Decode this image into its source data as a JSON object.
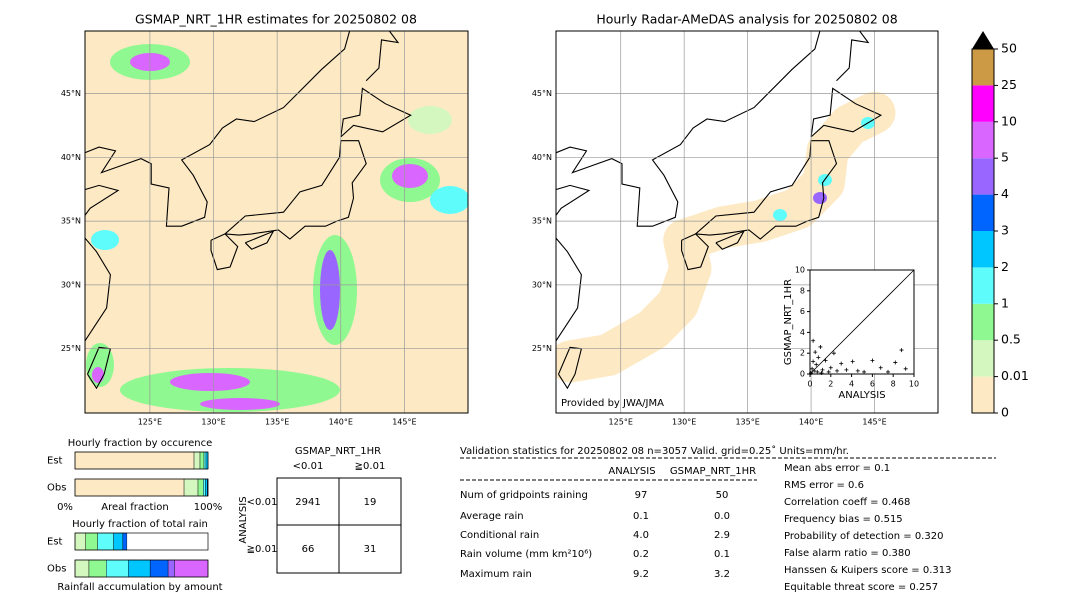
{
  "left_map": {
    "title": "GSMAP_NRT_1HR estimates for 20250802 08",
    "xlim": [
      119.9,
      150.0
    ],
    "ylim": [
      19.96,
      49.9
    ],
    "xticks": [
      {
        "value": 125,
        "label": "125°E"
      },
      {
        "value": 130,
        "label": "130°E"
      },
      {
        "value": 135,
        "label": "135°E"
      },
      {
        "value": 140,
        "label": "140°E"
      },
      {
        "value": 145,
        "label": "145°E"
      }
    ],
    "yticks": [
      {
        "value": 25,
        "label": "25°N"
      },
      {
        "value": 30,
        "label": "30°N"
      },
      {
        "value": 35,
        "label": "35°N"
      },
      {
        "value": 40,
        "label": "40°N"
      },
      {
        "value": 45,
        "label": "45°N"
      }
    ]
  },
  "right_map": {
    "title": "Hourly Radar-AMeDAS analysis for 20250802 08",
    "credit": "Provided by JWA/JMA",
    "xlim": [
      119.9,
      150.0
    ],
    "ylim": [
      19.96,
      49.9
    ],
    "xticks": [
      {
        "value": 125,
        "label": "125°E"
      },
      {
        "value": 130,
        "label": "130°E"
      },
      {
        "value": 135,
        "label": "135°E"
      },
      {
        "value": 140,
        "label": "140°E"
      },
      {
        "value": 145,
        "label": "145°E"
      }
    ],
    "yticks": [
      {
        "value": 25,
        "label": "25°N"
      },
      {
        "value": 30,
        "label": "30°N"
      },
      {
        "value": 35,
        "label": "35°N"
      },
      {
        "value": 40,
        "label": "40°N"
      },
      {
        "value": 45,
        "label": "45°N"
      }
    ]
  },
  "colorbar": {
    "ticks": [
      0,
      0.01,
      0.5,
      1,
      2,
      3,
      4,
      5,
      10,
      25,
      50
    ],
    "colors": [
      "#fdeac4",
      "#d4f7bf",
      "#90f890",
      "#5ffcfc",
      "#00c6ff",
      "#0064ff",
      "#9966ff",
      "#d966ff",
      "#ff00ff",
      "#cc9944"
    ]
  },
  "scatter": {
    "type": "scatter",
    "xlabel": "ANALYSIS",
    "ylabel": "GSMAP_NRT_1HR",
    "xlim": [
      0,
      10
    ],
    "ylim": [
      0,
      10
    ],
    "xticks": [
      0,
      2,
      4,
      6,
      8,
      10
    ],
    "yticks": [
      0,
      2,
      4,
      6,
      8,
      10
    ],
    "x": [
      0.1,
      0.2,
      0.3,
      0.5,
      0.4,
      0.8,
      1.0,
      1.2,
      0.6,
      1.5,
      2.0,
      2.3,
      1.8,
      3.0,
      3.5,
      4.1,
      4.6,
      5.2,
      6.0,
      6.8,
      7.5,
      8.2,
      8.8,
      9.2,
      0.3,
      0.7,
      1.1,
      2.6
    ],
    "y": [
      0.1,
      0.5,
      1.2,
      2.1,
      0.3,
      1.6,
      2.6,
      0.4,
      0.9,
      1.3,
      0.6,
      2.0,
      0.2,
      1.0,
      0.4,
      1.2,
      0.3,
      0.2,
      1.3,
      0.6,
      0.2,
      1.1,
      2.3,
      0.5,
      3.2,
      0.2,
      0.1,
      0.3
    ]
  },
  "occurrence": {
    "title": "Hourly fraction by occurence",
    "rows": [
      "Est",
      "Obs"
    ],
    "axis_left": "0%",
    "axis_mid": "Areal fraction",
    "axis_right": "100%",
    "segments": [
      [
        0.895,
        0.045,
        0.03,
        0.015,
        0.015
      ],
      [
        0.82,
        0.105,
        0.04,
        0.015,
        0.015,
        0.005
      ]
    ]
  },
  "total": {
    "title": "Hourly fraction of total rain",
    "rows": [
      "Est",
      "Obs"
    ],
    "footer": "Rainfall accumulation by amount",
    "segments": [
      [
        0.0,
        0.08,
        0.09,
        0.12,
        0.07,
        0.03
      ],
      [
        0.0,
        0.105,
        0.13,
        0.165,
        0.165,
        0.135,
        0.05,
        0.25
      ]
    ]
  },
  "contingency": {
    "title": "GSMAP_NRT_1HR",
    "cols": [
      "<0.01",
      "≧0.01"
    ],
    "row_title": "ANALYSIS",
    "rows": [
      "<0.01",
      "≧0.01"
    ],
    "cells": [
      [
        "2941",
        "19"
      ],
      [
        "66",
        "31"
      ]
    ]
  },
  "validation": {
    "header": "Validation statistics for 20250802 08  n=3057 Valid. grid=0.25˚ Units=mm/hr.",
    "cols": [
      "ANALYSIS",
      "GSMAP_NRT_1HR"
    ],
    "rows": [
      [
        "Num of gridpoints raining",
        "97",
        "50"
      ],
      [
        "Average rain",
        "0.1",
        "0.0"
      ],
      [
        "Conditional rain",
        "4.0",
        "2.9"
      ],
      [
        "Rain volume (mm km²10⁶)",
        "0.2",
        "0.1"
      ],
      [
        "Maximum rain",
        "9.2",
        "3.2"
      ]
    ],
    "scores": [
      "Mean abs error =    0.1",
      "RMS error =    0.6",
      "Correlation coeff =  0.468",
      "Frequency bias =  0.515",
      "Probability of detection =  0.320",
      "False alarm ratio =  0.380",
      "Hanssen & Kuipers score =  0.313",
      "Equitable threat score =  0.257"
    ]
  }
}
